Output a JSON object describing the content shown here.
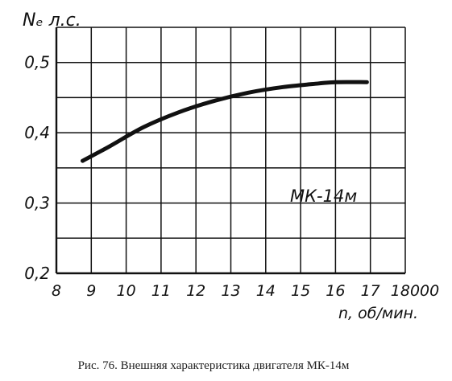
{
  "chart_data": {
    "type": "line",
    "ylabel": "Nₑ л.с.",
    "xlabel": "n, об/мин.",
    "x_ticks": [
      "8",
      "9",
      "10",
      "11",
      "12",
      "13",
      "14",
      "15",
      "16",
      "17",
      "18000"
    ],
    "y_ticks": [
      "0,2",
      "0,3",
      "0,4",
      "0,5"
    ],
    "xlim": [
      8,
      18
    ],
    "ylim": [
      0.2,
      0.55
    ],
    "grid": true,
    "series": [
      {
        "name": "МК-14м",
        "x": [
          8.75,
          9.5,
          10.5,
          11.5,
          12.5,
          13.5,
          14.5,
          15.5,
          16.0,
          16.9
        ],
        "y": [
          0.36,
          0.38,
          0.408,
          0.429,
          0.445,
          0.457,
          0.465,
          0.47,
          0.472,
          0.472
        ]
      }
    ],
    "annotation": "МК-14м",
    "color": "#111111"
  },
  "caption": "Рис. 76. Внешняя характеристика двигателя МК-14м"
}
